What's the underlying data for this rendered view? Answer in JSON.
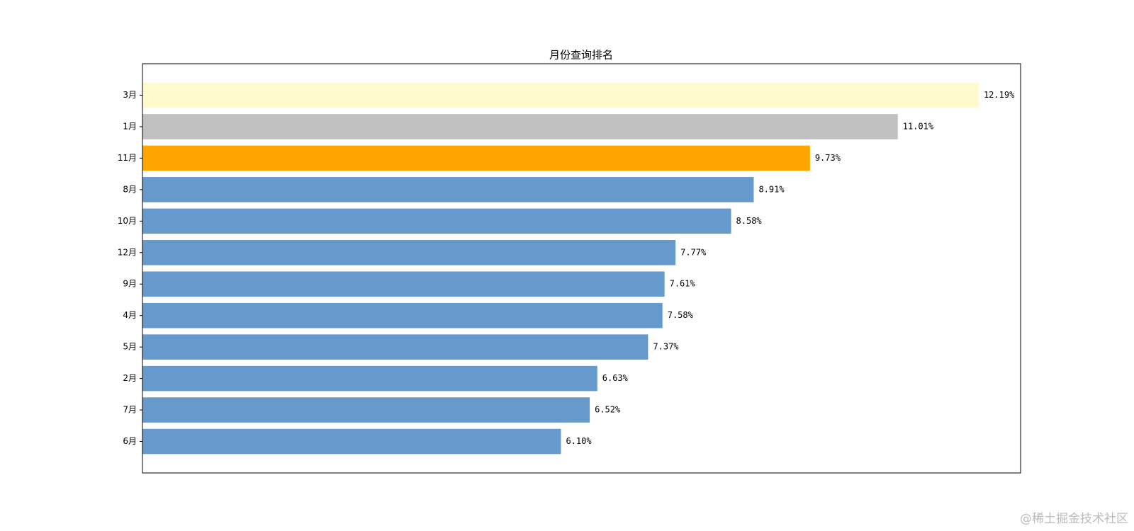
{
  "chart_data": {
    "type": "barh",
    "title": "月份查询排名",
    "categories": [
      "3月",
      "1月",
      "11月",
      "8月",
      "10月",
      "12月",
      "9月",
      "4月",
      "5月",
      "2月",
      "7月",
      "6月"
    ],
    "values": [
      12.19,
      11.01,
      9.73,
      8.91,
      8.58,
      7.77,
      7.61,
      7.58,
      7.37,
      6.63,
      6.52,
      6.1
    ],
    "value_labels": [
      "12.19%",
      "11.01%",
      "9.73%",
      "8.91%",
      "8.58%",
      "7.77%",
      "7.61%",
      "7.58%",
      "7.37%",
      "6.63%",
      "6.52%",
      "6.10%"
    ],
    "colors": [
      "#fffacd",
      "#c0c0c0",
      "#ffa500",
      "#6699cc",
      "#6699cc",
      "#6699cc",
      "#6699cc",
      "#6699cc",
      "#6699cc",
      "#6699cc",
      "#6699cc",
      "#6699cc"
    ],
    "xlim": [
      0,
      12.8
    ],
    "watermark": "@稀土掘金技术社区"
  }
}
